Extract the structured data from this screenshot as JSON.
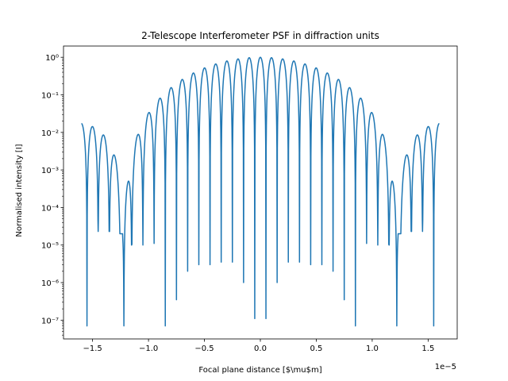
{
  "chart_data": {
    "type": "line",
    "title": "2-Telescope Interferometer PSF in diffraction units",
    "xlabel": "Focal plane distance [$\\mu$m]",
    "ylabel": "Normalised intensity [I]",
    "x_offset_label": "1e−5",
    "xlim": [
      -1.76,
      1.76
    ],
    "ylim_log10": [
      -7.5,
      0.3
    ],
    "y_scale": "log",
    "grid": false,
    "legend": "none",
    "color": "#1f77b4",
    "x_ticks": [
      {
        "value": -1.5,
        "label": "−1.5"
      },
      {
        "value": -1.0,
        "label": "−1.0"
      },
      {
        "value": -0.5,
        "label": "−0.5"
      },
      {
        "value": 0.0,
        "label": "0.0"
      },
      {
        "value": 0.5,
        "label": "0.5"
      },
      {
        "value": 1.0,
        "label": "1.0"
      },
      {
        "value": 1.5,
        "label": "1.5"
      }
    ],
    "y_ticks": [
      {
        "exp": 0,
        "label": "10⁰"
      },
      {
        "exp": -1,
        "label": "10⁻¹"
      },
      {
        "exp": -2,
        "label": "10⁻²"
      },
      {
        "exp": -3,
        "label": "10⁻³"
      },
      {
        "exp": -4,
        "label": "10⁻⁴"
      },
      {
        "exp": -5,
        "label": "10⁻⁵"
      },
      {
        "exp": -6,
        "label": "10⁻⁶"
      },
      {
        "exp": -7,
        "label": "10⁻⁷"
      }
    ],
    "series": [
      {
        "fringe_period": 0.1,
        "first_zero": 1.22,
        "minima": [
          {
            "x": 0.05,
            "y": 1.1e-07
          },
          {
            "x": 0.15,
            "y": 1e-06
          },
          {
            "x": 0.25,
            "y": 3.5e-06
          },
          {
            "x": 0.35,
            "y": 3.5e-06
          },
          {
            "x": 0.45,
            "y": 3e-06
          },
          {
            "x": 0.55,
            "y": 3e-06
          },
          {
            "x": 0.65,
            "y": 2e-06
          },
          {
            "x": 0.75,
            "y": 3.5e-07
          },
          {
            "x": 0.85,
            "y": 7e-08
          },
          {
            "x": 0.95,
            "y": 1.1e-05
          },
          {
            "x": 1.05,
            "y": 1e-05
          },
          {
            "x": 1.15,
            "y": 1e-05
          },
          {
            "x": 1.25,
            "y": 2e-05
          },
          {
            "x": 1.35,
            "y": 2.3e-05
          },
          {
            "x": 1.45,
            "y": 2.3e-05
          }
        ],
        "deep_minima": [
          {
            "x": 1.22,
            "y": 1e-06
          },
          {
            "x": 1.195,
            "y": 1.2e-05
          }
        ]
      }
    ]
  }
}
